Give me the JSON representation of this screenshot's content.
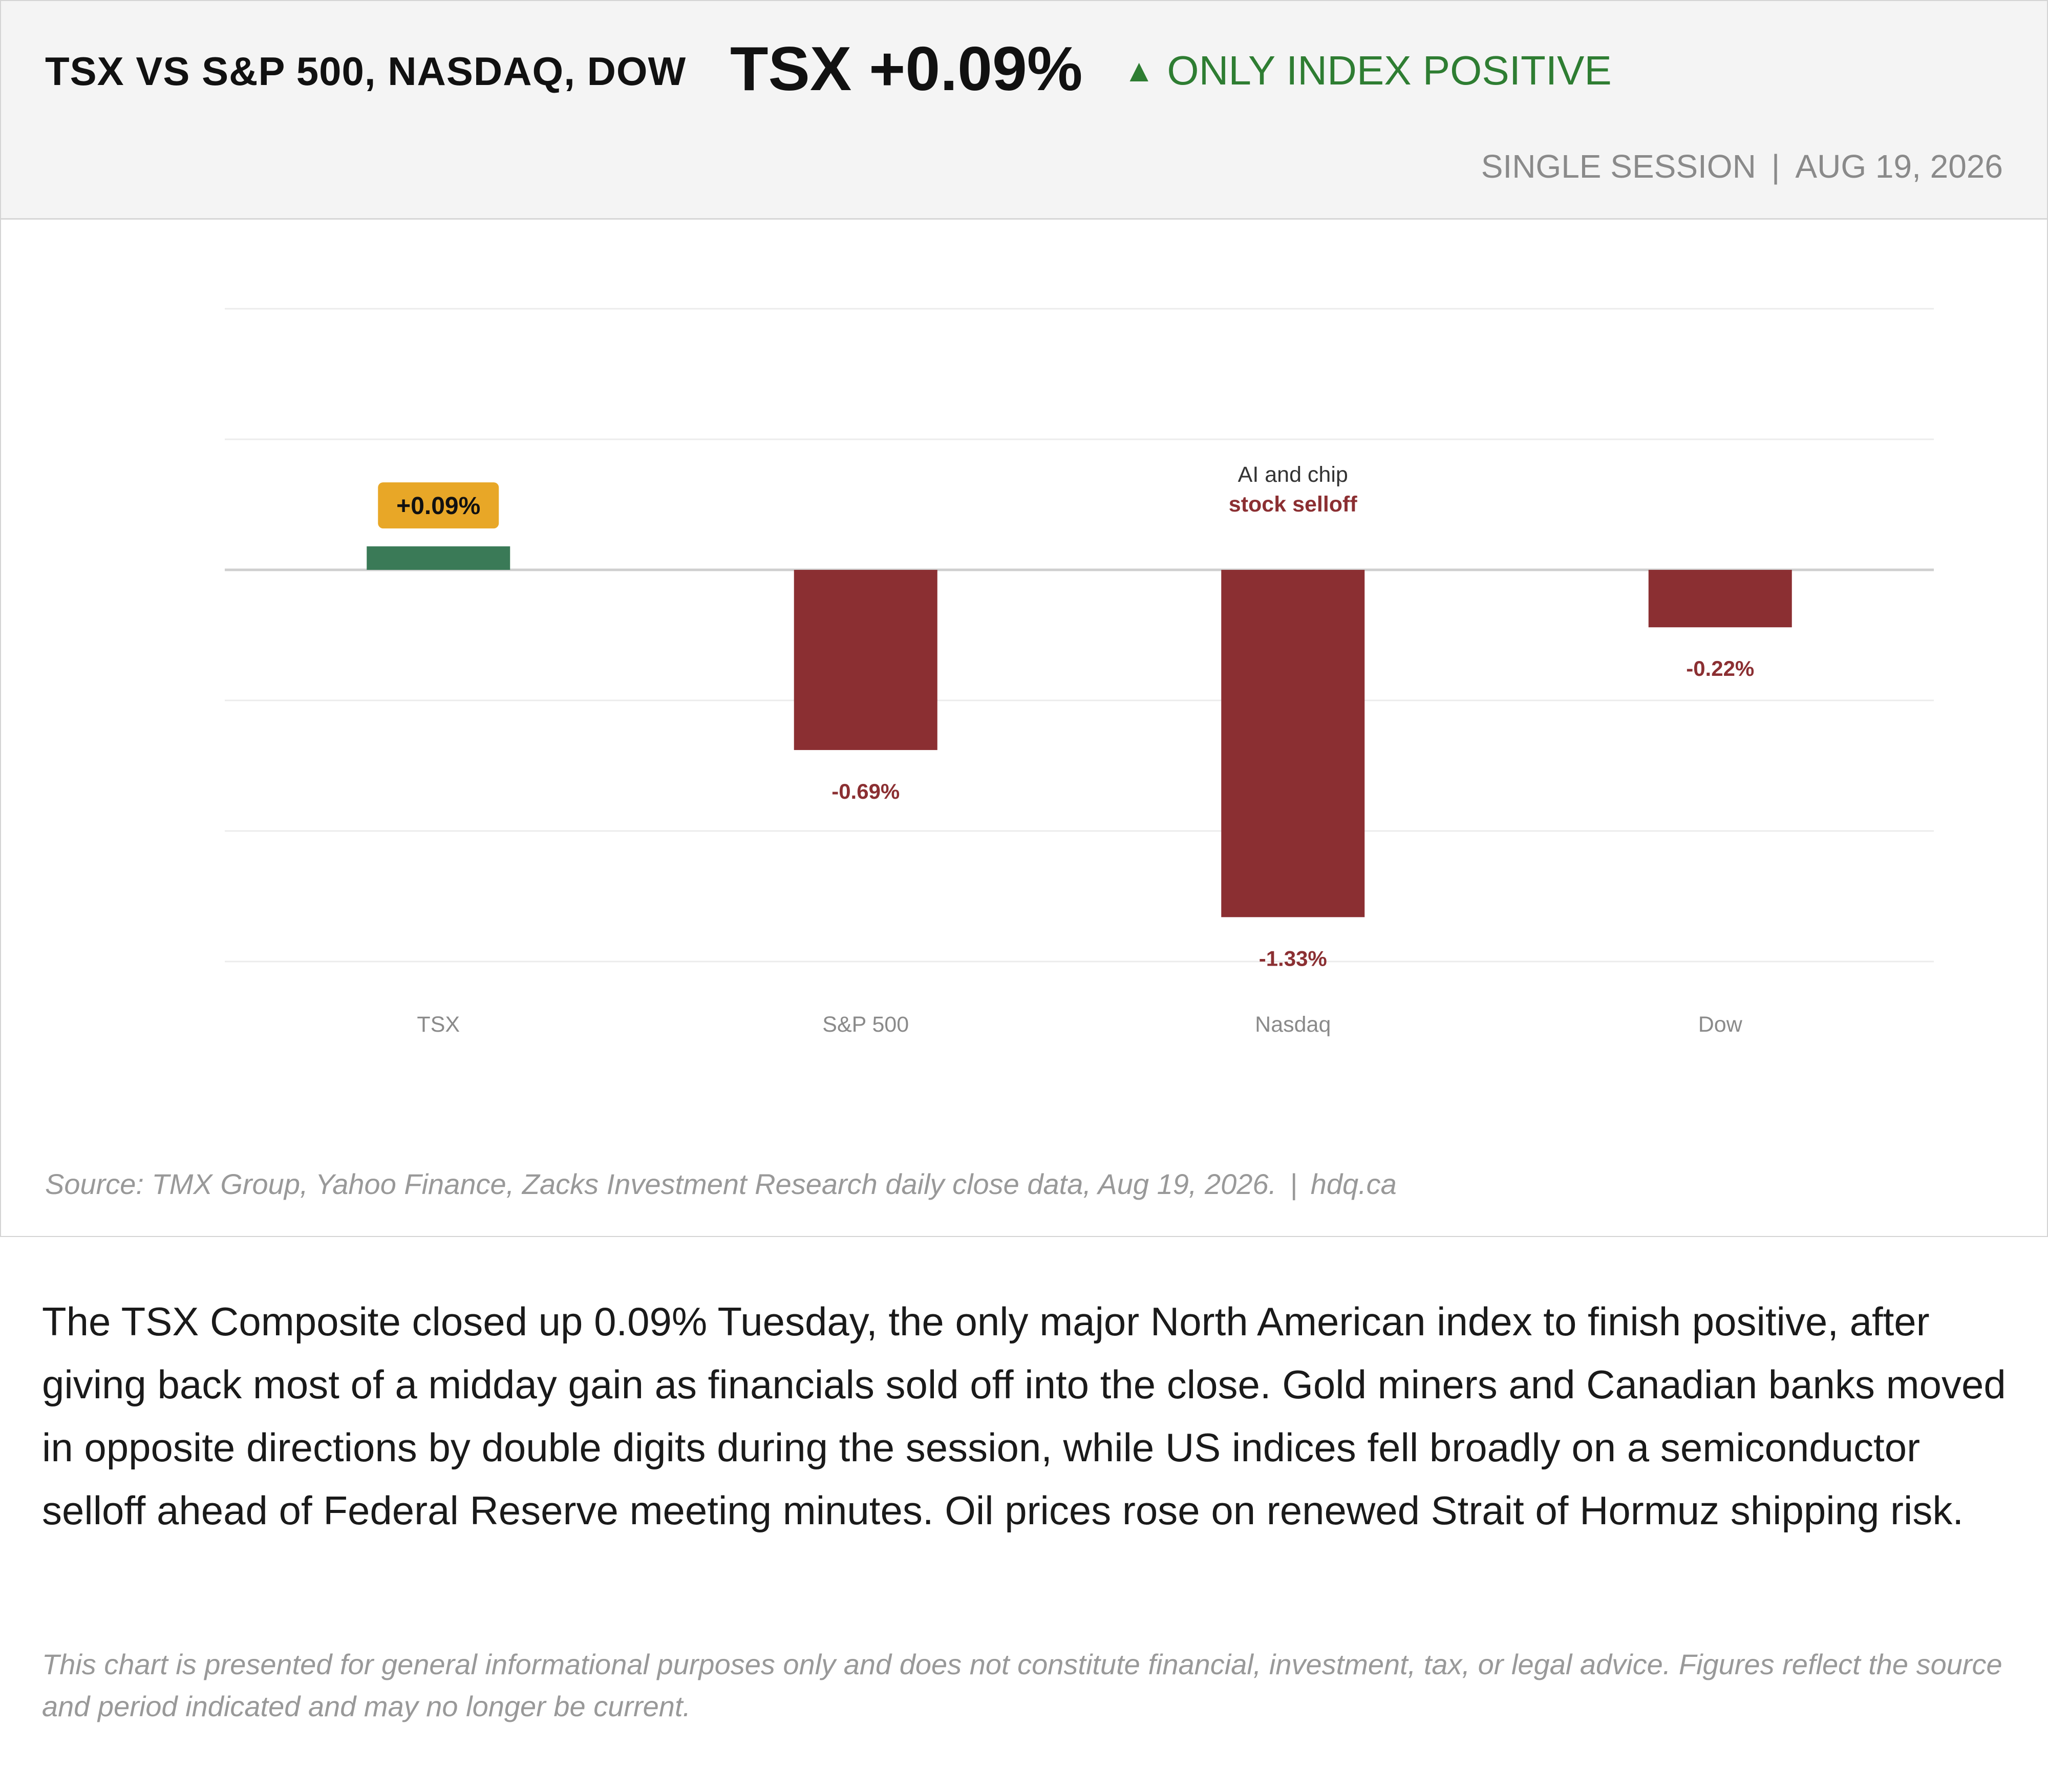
{
  "header": {
    "title": "TSX VS S&P 500, NASDAQ, DOW",
    "headline_value": "TSX +0.09%",
    "status_icon": "up-triangle",
    "status_glyph": "▲",
    "status_text": "ONLY INDEX POSITIVE",
    "session": "SINGLE SESSION",
    "separator": "|",
    "date": "AUG 19, 2026"
  },
  "colors": {
    "positive": "#3a7a57",
    "negative": "#8b2f32",
    "badge": "#e8a727",
    "status_green": "#2e7d32",
    "grid": "#ececec",
    "zero_line": "#cfcfcf",
    "tick_text": "#8a8a8a",
    "annotation_text": "#333333"
  },
  "chart_data": {
    "type": "bar",
    "categories": [
      "TSX",
      "S&P 500",
      "Nasdaq",
      "Dow"
    ],
    "values": [
      0.09,
      -0.69,
      -1.33,
      -0.22
    ],
    "data_labels": [
      "+0.09%",
      "-0.69%",
      "-1.33%",
      "-0.22%"
    ],
    "highlight_category": "TSX",
    "ylim": [
      -1.5,
      1.0
    ],
    "grid": true,
    "grid_step": 0.5,
    "legend": "none",
    "annotations": [
      {
        "category": "Nasdaq",
        "line1": "AI and chip",
        "line2": "stock selloff"
      }
    ]
  },
  "footer": {
    "source": "Source: TMX Group, Yahoo Finance, Zacks Investment Research daily close data, Aug 19, 2026.",
    "separator": "|",
    "site": "hdq.ca"
  },
  "summary": "The TSX Composite closed up 0.09% Tuesday, the only major North American index to finish positive, after giving back most of a midday gain as financials sold off into the close. Gold miners and Canadian banks moved in opposite directions by double digits during the session, while US indices fell broadly on a semiconductor selloff ahead of Federal Reserve meeting minutes. Oil prices rose on renewed Strait of Hormuz shipping risk.",
  "disclaimer": "This chart is presented for general informational purposes only and does not constitute financial, investment, tax, or legal advice. Figures reflect the source and period indicated and may no longer be current."
}
